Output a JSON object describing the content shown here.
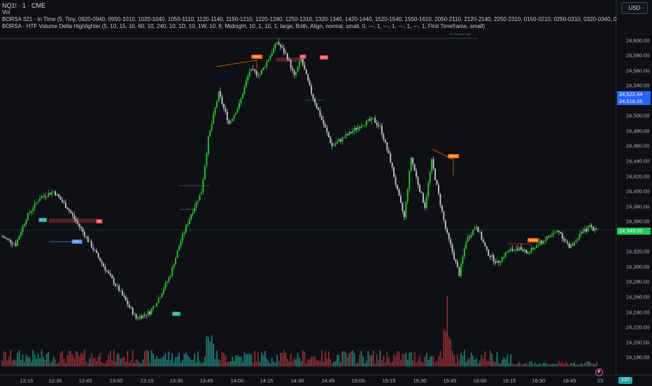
{
  "header": {
    "symbol": "NQ1! · 1 · CME",
    "line2": "Vol",
    "indicator1": "BORSA 321 - In Time (5, Tiny, 0920-0940, 0950-1010, 1020-1040, 1050-1110, 1120-1140, 1150-1210, 1220-1240, 1250-1310, 1320-1340, 1420-1440, 1520-1540, 1550-1610, 2050-2110, 2120-2140, 2250-2310, 0150-0210, 0250-0310, 0320-0340, 0",
    "indicator2": "BORSA - HTF Volume Delta Highlighter (5, 10, 15, 10, 60, 10, 240, 10, 1D, 10, 1W, 10, 6, Midnight, 10, 1, 10, 1, large, Both, Align, normal, small, 0, ---, 1, ---, 1, ---, 1, ---, 1, First Timeframe, small)"
  },
  "currency": "USD",
  "price_axis": {
    "labels": [
      "24,600.00",
      "24,580.00",
      "24,560.00",
      "24,540.00",
      "24,500.00",
      "24,480.00",
      "24,460.00",
      "24,440.00",
      "24,420.00",
      "24,400.00",
      "24,380.00",
      "24,360.00",
      "24,320.00",
      "24,300.00",
      "24,280.00",
      "24,260.00",
      "24,240.00",
      "24,220.00",
      "24,200.00",
      "24,180.00"
    ],
    "badge_top": {
      "value": "24,522.44",
      "color": "#2962ff"
    },
    "badge_mid": {
      "value": "24,516.25",
      "color": "#2962ff"
    },
    "badge_last": {
      "value": "24,349.00",
      "color": "#22c55e"
    }
  },
  "time_axis": {
    "labels": [
      "12:15",
      "12:30",
      "12:45",
      "13:00",
      "13:15",
      "13:30",
      "13:45",
      "14:00",
      "14:15",
      "14:30",
      "14:45",
      "15:00",
      "15:15",
      "15:30",
      "15:45",
      "16:00",
      "16:15",
      "16:30",
      "16:45",
      "23"
    ]
  },
  "volume_badge": "137",
  "annotations": {
    "a1": "NY1",
    "a2": "H1",
    "a3": "SWL1",
    "a4": "VWH1",
    "a5": "NY1",
    "a6": "H1",
    "a7": "NWH1",
    "a8": "NWH2",
    "a9": "NY1",
    "ghost1": "NY Session High"
  },
  "colors": {
    "up": "#26d026",
    "down": "#c8cbd2",
    "vol_up": "#1f7a72",
    "vol_down": "#8a2d34",
    "orange": "#ff6d00",
    "red": "#ef5350",
    "blue": "#4a90e2",
    "teal": "#26a69a"
  },
  "chart_data": {
    "type": "candlestick",
    "y_range": [
      24170,
      24608
    ],
    "last_price": 24349,
    "anchors": [
      [
        0,
        24340
      ],
      [
        8,
        24330
      ],
      [
        14,
        24365
      ],
      [
        22,
        24392
      ],
      [
        30,
        24400
      ],
      [
        38,
        24378
      ],
      [
        46,
        24350
      ],
      [
        54,
        24320
      ],
      [
        62,
        24290
      ],
      [
        70,
        24262
      ],
      [
        78,
        24232
      ],
      [
        86,
        24240
      ],
      [
        92,
        24262
      ],
      [
        98,
        24290
      ],
      [
        104,
        24335
      ],
      [
        110,
        24370
      ],
      [
        116,
        24400
      ],
      [
        120,
        24470
      ],
      [
        126,
        24530
      ],
      [
        132,
        24490
      ],
      [
        138,
        24515
      ],
      [
        144,
        24560
      ],
      [
        150,
        24555
      ],
      [
        156,
        24580
      ],
      [
        160,
        24598
      ],
      [
        166,
        24578
      ],
      [
        170,
        24552
      ],
      [
        174,
        24575
      ],
      [
        180,
        24530
      ],
      [
        186,
        24495
      ],
      [
        192,
        24460
      ],
      [
        198,
        24470
      ],
      [
        204,
        24480
      ],
      [
        210,
        24490
      ],
      [
        216,
        24495
      ],
      [
        220,
        24485
      ],
      [
        226,
        24440
      ],
      [
        230,
        24400
      ],
      [
        234,
        24365
      ],
      [
        238,
        24445
      ],
      [
        242,
        24410
      ],
      [
        246,
        24380
      ],
      [
        250,
        24440
      ],
      [
        254,
        24395
      ],
      [
        258,
        24350
      ],
      [
        262,
        24320
      ],
      [
        266,
        24290
      ],
      [
        270,
        24335
      ],
      [
        276,
        24355
      ],
      [
        282,
        24320
      ],
      [
        288,
        24305
      ],
      [
        294,
        24320
      ],
      [
        300,
        24325
      ],
      [
        306,
        24318
      ],
      [
        312,
        24330
      ],
      [
        318,
        24340
      ],
      [
        324,
        24348
      ],
      [
        330,
        24325
      ],
      [
        336,
        24342
      ],
      [
        342,
        24353
      ],
      [
        346,
        24349
      ]
    ]
  }
}
